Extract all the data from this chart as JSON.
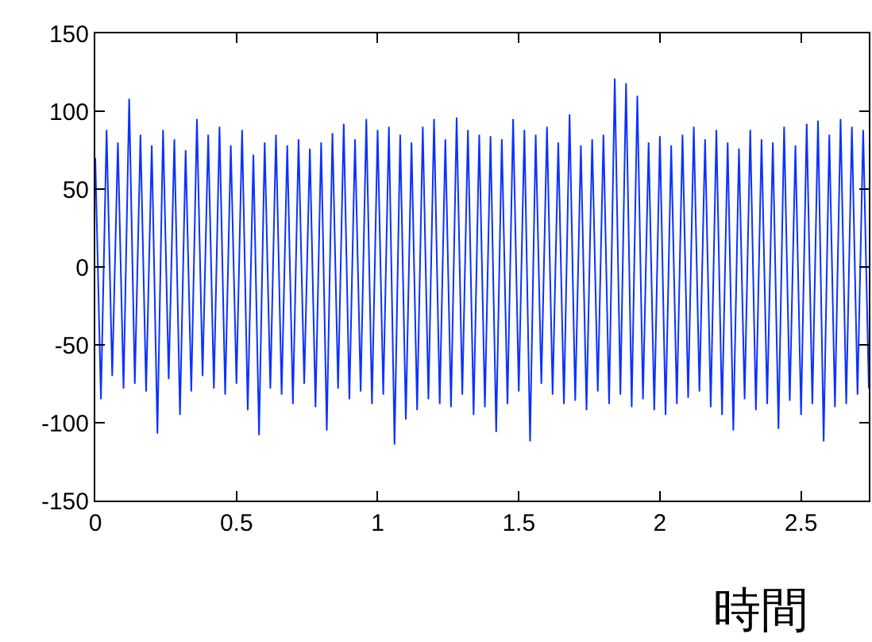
{
  "chart_data": {
    "type": "line",
    "xlabel": "時間",
    "x": [
      0,
      0.02,
      0.04,
      0.06,
      0.08,
      0.1,
      0.12,
      0.14,
      0.16,
      0.18,
      0.2,
      0.22,
      0.24,
      0.26,
      0.28,
      0.3,
      0.32,
      0.34,
      0.36,
      0.38,
      0.4,
      0.42,
      0.44,
      0.46,
      0.48,
      0.5,
      0.52,
      0.54,
      0.56,
      0.58,
      0.6,
      0.62,
      0.64,
      0.66,
      0.68,
      0.7,
      0.72,
      0.74,
      0.76,
      0.78,
      0.8,
      0.82,
      0.84,
      0.86,
      0.88,
      0.9,
      0.92,
      0.94,
      0.96,
      0.98,
      1,
      1.02,
      1.04,
      1.06,
      1.08,
      1.1,
      1.12,
      1.14,
      1.16,
      1.18,
      1.2,
      1.22,
      1.24,
      1.26,
      1.28,
      1.3,
      1.32,
      1.34,
      1.36,
      1.38,
      1.4,
      1.42,
      1.44,
      1.46,
      1.48,
      1.5,
      1.52,
      1.54,
      1.56,
      1.58,
      1.6,
      1.62,
      1.64,
      1.66,
      1.68,
      1.7,
      1.72,
      1.74,
      1.76,
      1.78,
      1.8,
      1.82,
      1.84,
      1.86,
      1.88,
      1.9,
      1.92,
      1.94,
      1.96,
      1.98,
      2,
      2.02,
      2.04,
      2.06,
      2.08,
      2.1,
      2.12,
      2.14,
      2.16,
      2.18,
      2.2,
      2.22,
      2.24,
      2.26,
      2.28,
      2.3,
      2.32,
      2.34,
      2.36,
      2.38,
      2.4,
      2.42,
      2.44,
      2.46,
      2.48,
      2.5,
      2.52,
      2.54,
      2.56,
      2.58,
      2.6,
      2.62,
      2.64,
      2.66,
      2.68,
      2.7,
      2.72,
      2.74
    ],
    "series": [
      {
        "color": "#0a32ff",
        "values": [
          70,
          -85,
          88,
          -70,
          80,
          -78,
          108,
          -75,
          85,
          -80,
          78,
          -107,
          88,
          -72,
          82,
          -95,
          75,
          -80,
          95,
          -70,
          85,
          -78,
          90,
          -82,
          78,
          -75,
          88,
          -92,
          72,
          -108,
          80,
          -78,
          85,
          -82,
          78,
          -88,
          82,
          -75,
          76,
          -90,
          80,
          -105,
          86,
          -78,
          92,
          -85,
          82,
          -80,
          95,
          -88,
          88,
          -82,
          90,
          -114,
          85,
          -98,
          80,
          -92,
          90,
          -85,
          95,
          -88,
          82,
          -90,
          96,
          -82,
          88,
          -95,
          85,
          -90,
          84,
          -106,
          82,
          -88,
          95,
          -80,
          88,
          -112,
          85,
          -75,
          90,
          -82,
          80,
          -88,
          98,
          -86,
          78,
          -92,
          82,
          -80,
          85,
          -88,
          121,
          -82,
          118,
          -90,
          110,
          -85,
          80,
          -92,
          84,
          -95,
          78,
          -88,
          85,
          -84,
          90,
          -80,
          82,
          -90,
          88,
          -95,
          80,
          -105,
          76,
          -85,
          88,
          -92,
          82,
          -88,
          80,
          -104,
          90,
          -86,
          78,
          -95,
          92,
          -88,
          94,
          -112,
          85,
          -90,
          95,
          -88,
          90,
          -82,
          88,
          -78
        ]
      }
    ],
    "xlim": [
      0,
      2.74
    ],
    "ylim": [
      -150,
      150
    ],
    "xticks": [
      0,
      0.5,
      1,
      1.5,
      2,
      2.5
    ],
    "yticks": [
      -150,
      -100,
      -50,
      0,
      50,
      100,
      150
    ]
  }
}
